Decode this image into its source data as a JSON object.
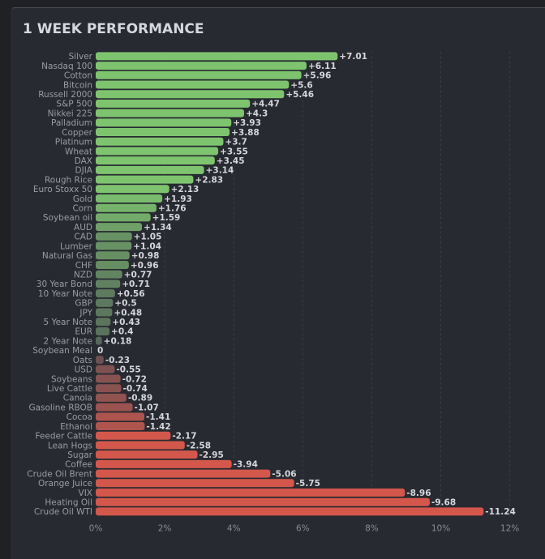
{
  "panel": {
    "title": "1 WEEK PERFORMANCE"
  },
  "colors": {
    "positive": "#7ec46f",
    "negative": "#d4574c",
    "neutral": "#4b4e55",
    "background": "#272a31"
  },
  "chart_data": {
    "type": "bar",
    "orientation": "horizontal",
    "title": "1 WEEK PERFORMANCE",
    "xlabel": "",
    "ylabel": "",
    "xlim": [
      0,
      12
    ],
    "x_axis_measure": "absolute percent change",
    "x_ticks": [
      "0%",
      "2%",
      "4%",
      "6%",
      "8%",
      "10%",
      "12%"
    ],
    "grid": "vertical dashed",
    "categories": [
      "Silver",
      "Nasdaq 100",
      "Cotton",
      "Bitcoin",
      "Russell 2000",
      "S&P 500",
      "Nikkei 225",
      "Palladium",
      "Copper",
      "Platinum",
      "Wheat",
      "DAX",
      "DJIA",
      "Rough Rice",
      "Euro Stoxx 50",
      "Gold",
      "Corn",
      "Soybean oil",
      "AUD",
      "CAD",
      "Lumber",
      "Natural Gas",
      "CHF",
      "NZD",
      "30 Year Bond",
      "10 Year Note",
      "GBP",
      "JPY",
      "5 Year Note",
      "EUR",
      "2 Year Note",
      "Soybean Meal",
      "Oats",
      "USD",
      "Soybeans",
      "Live Cattle",
      "Canola",
      "Gasoline RBOB",
      "Cocoa",
      "Ethanol",
      "Feeder Cattle",
      "Lean Hogs",
      "Sugar",
      "Coffee",
      "Crude Oil Brent",
      "Orange Juice",
      "VIX",
      "Heating Oil",
      "Crude Oil WTI"
    ],
    "values": [
      7.01,
      6.11,
      5.96,
      5.6,
      5.46,
      4.47,
      4.3,
      3.93,
      3.88,
      3.7,
      3.55,
      3.45,
      3.14,
      2.83,
      2.13,
      1.93,
      1.76,
      1.59,
      1.34,
      1.05,
      1.04,
      0.98,
      0.96,
      0.77,
      0.71,
      0.56,
      0.5,
      0.48,
      0.43,
      0.4,
      0.18,
      0,
      -0.23,
      -0.55,
      -0.72,
      -0.74,
      -0.89,
      -1.07,
      -1.41,
      -1.42,
      -2.17,
      -2.58,
      -2.95,
      -3.94,
      -5.06,
      -5.75,
      -8.96,
      -9.68,
      -11.24
    ],
    "value_labels": [
      "+7.01",
      "+6.11",
      "+5.96",
      "+5.6",
      "+5.46",
      "+4.47",
      "+4.3",
      "+3.93",
      "+3.88",
      "+3.7",
      "+3.55",
      "+3.45",
      "+3.14",
      "+2.83",
      "+2.13",
      "+1.93",
      "+1.76",
      "+1.59",
      "+1.34",
      "+1.05",
      "+1.04",
      "+0.98",
      "+0.96",
      "+0.77",
      "+0.71",
      "+0.56",
      "+0.5",
      "+0.48",
      "+0.43",
      "+0.4",
      "+0.18",
      "0",
      "-0.23",
      "-0.55",
      "-0.72",
      "-0.74",
      "-0.89",
      "-1.07",
      "-1.41",
      "-1.42",
      "-2.17",
      "-2.58",
      "-2.95",
      "-3.94",
      "-5.06",
      "-5.75",
      "-8.96",
      "-9.68",
      "-11.24"
    ]
  }
}
